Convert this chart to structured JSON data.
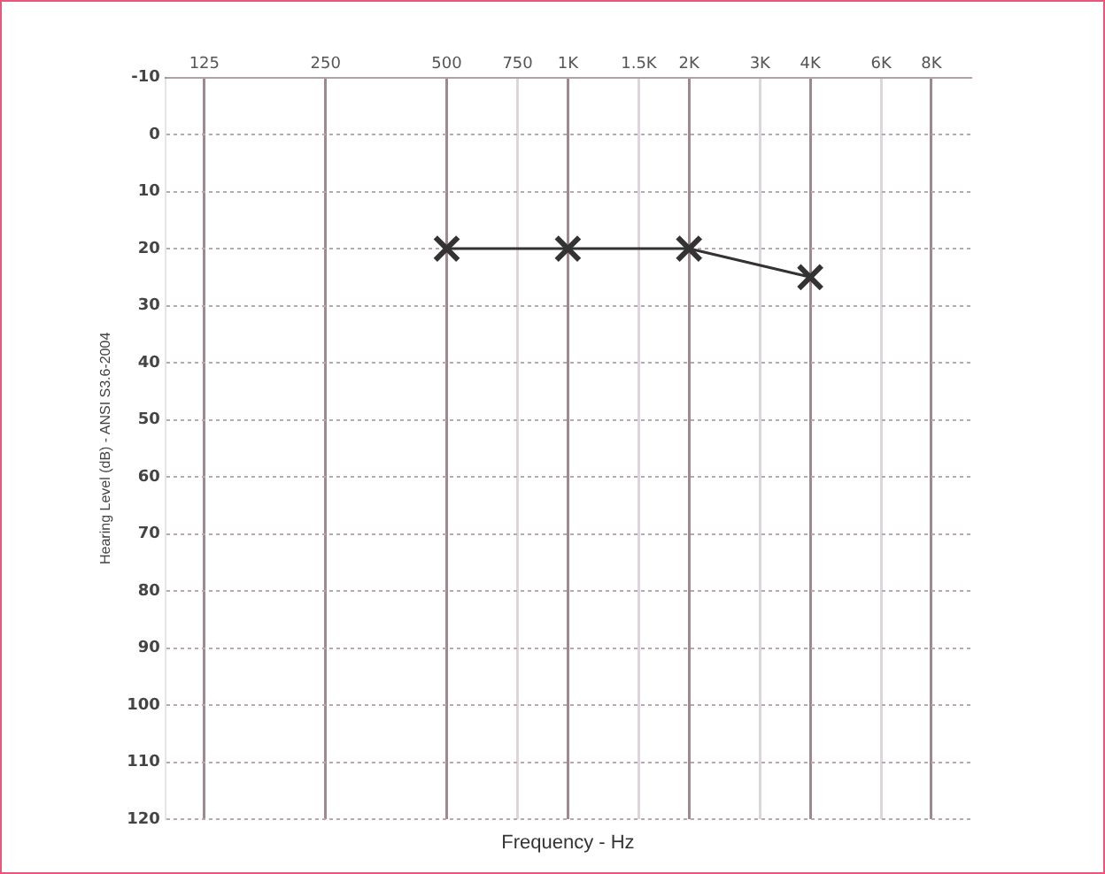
{
  "chart_data": {
    "type": "line",
    "xlabel": "Frequency - Hz",
    "ylabel": "Hearing Level (dB) - ANSI S3.6-2004",
    "x": [
      500,
      1000,
      2000,
      4000
    ],
    "series": [
      {
        "color": "#333333",
        "values": [
          20,
          20,
          20,
          25
        ]
      }
    ],
    "xlim": [
      100,
      10000
    ],
    "xticks": [
      125,
      250,
      500,
      750,
      {
        "value": 1000,
        "label": "1K"
      },
      {
        "value": 1500,
        "label": "1.5K"
      },
      {
        "value": 2000,
        "label": "2K"
      },
      {
        "value": 3000,
        "label": "3K"
      },
      {
        "value": 4000,
        "label": "4K"
      },
      {
        "value": 6000,
        "label": "6K"
      },
      {
        "value": 8000,
        "label": "8K"
      }
    ],
    "ylim": [
      120,
      -10
    ],
    "yticks": [
      -10,
      0,
      10,
      20,
      30,
      40,
      50,
      60,
      70,
      80,
      90,
      100,
      110,
      120
    ],
    "log": "x",
    "grid": true,
    "marker": "cross",
    "line_style": "solid",
    "legend": false
  }
}
